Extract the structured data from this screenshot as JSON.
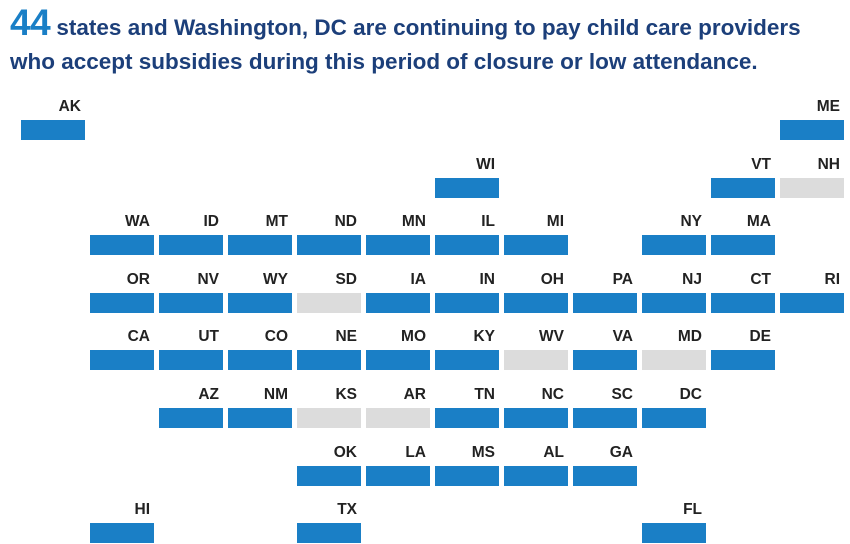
{
  "headline": {
    "count": "44",
    "text_line1": " states and Washington, DC are continuing to pay child care providers",
    "text_line2": "who accept subsidies during this period of closure or low attendance."
  },
  "colors": {
    "paying": "#1a7fc6",
    "not_paying": "#dcdcdc",
    "headline_text": "#1c3f7a",
    "headline_number": "#1a7fc6"
  },
  "states": [
    {
      "abbr": "AK",
      "row": 0,
      "col": 0,
      "paying": true
    },
    {
      "abbr": "ME",
      "row": 0,
      "col": 11,
      "paying": true
    },
    {
      "abbr": "WI",
      "row": 1,
      "col": 6,
      "paying": true
    },
    {
      "abbr": "VT",
      "row": 1,
      "col": 10,
      "paying": true
    },
    {
      "abbr": "NH",
      "row": 1,
      "col": 11,
      "paying": false
    },
    {
      "abbr": "WA",
      "row": 2,
      "col": 1,
      "paying": true
    },
    {
      "abbr": "ID",
      "row": 2,
      "col": 2,
      "paying": true
    },
    {
      "abbr": "MT",
      "row": 2,
      "col": 3,
      "paying": true
    },
    {
      "abbr": "ND",
      "row": 2,
      "col": 4,
      "paying": true
    },
    {
      "abbr": "MN",
      "row": 2,
      "col": 5,
      "paying": true
    },
    {
      "abbr": "IL",
      "row": 2,
      "col": 6,
      "paying": true
    },
    {
      "abbr": "MI",
      "row": 2,
      "col": 7,
      "paying": true
    },
    {
      "abbr": "NY",
      "row": 2,
      "col": 9,
      "paying": true
    },
    {
      "abbr": "MA",
      "row": 2,
      "col": 10,
      "paying": true
    },
    {
      "abbr": "OR",
      "row": 3,
      "col": 1,
      "paying": true
    },
    {
      "abbr": "NV",
      "row": 3,
      "col": 2,
      "paying": true
    },
    {
      "abbr": "WY",
      "row": 3,
      "col": 3,
      "paying": true
    },
    {
      "abbr": "SD",
      "row": 3,
      "col": 4,
      "paying": false
    },
    {
      "abbr": "IA",
      "row": 3,
      "col": 5,
      "paying": true
    },
    {
      "abbr": "IN",
      "row": 3,
      "col": 6,
      "paying": true
    },
    {
      "abbr": "OH",
      "row": 3,
      "col": 7,
      "paying": true
    },
    {
      "abbr": "PA",
      "row": 3,
      "col": 8,
      "paying": true
    },
    {
      "abbr": "NJ",
      "row": 3,
      "col": 9,
      "paying": true
    },
    {
      "abbr": "CT",
      "row": 3,
      "col": 10,
      "paying": true
    },
    {
      "abbr": "RI",
      "row": 3,
      "col": 11,
      "paying": true
    },
    {
      "abbr": "CA",
      "row": 4,
      "col": 1,
      "paying": true
    },
    {
      "abbr": "UT",
      "row": 4,
      "col": 2,
      "paying": true
    },
    {
      "abbr": "CO",
      "row": 4,
      "col": 3,
      "paying": true
    },
    {
      "abbr": "NE",
      "row": 4,
      "col": 4,
      "paying": true
    },
    {
      "abbr": "MO",
      "row": 4,
      "col": 5,
      "paying": true
    },
    {
      "abbr": "KY",
      "row": 4,
      "col": 6,
      "paying": true
    },
    {
      "abbr": "WV",
      "row": 4,
      "col": 7,
      "paying": false
    },
    {
      "abbr": "VA",
      "row": 4,
      "col": 8,
      "paying": true
    },
    {
      "abbr": "MD",
      "row": 4,
      "col": 9,
      "paying": false
    },
    {
      "abbr": "DE",
      "row": 4,
      "col": 10,
      "paying": true
    },
    {
      "abbr": "AZ",
      "row": 5,
      "col": 2,
      "paying": true
    },
    {
      "abbr": "NM",
      "row": 5,
      "col": 3,
      "paying": true
    },
    {
      "abbr": "KS",
      "row": 5,
      "col": 4,
      "paying": false
    },
    {
      "abbr": "AR",
      "row": 5,
      "col": 5,
      "paying": false
    },
    {
      "abbr": "TN",
      "row": 5,
      "col": 6,
      "paying": true
    },
    {
      "abbr": "NC",
      "row": 5,
      "col": 7,
      "paying": true
    },
    {
      "abbr": "SC",
      "row": 5,
      "col": 8,
      "paying": true
    },
    {
      "abbr": "DC",
      "row": 5,
      "col": 9,
      "paying": true
    },
    {
      "abbr": "OK",
      "row": 6,
      "col": 4,
      "paying": true
    },
    {
      "abbr": "LA",
      "row": 6,
      "col": 5,
      "paying": true
    },
    {
      "abbr": "MS",
      "row": 6,
      "col": 6,
      "paying": true
    },
    {
      "abbr": "AL",
      "row": 6,
      "col": 7,
      "paying": true
    },
    {
      "abbr": "GA",
      "row": 6,
      "col": 8,
      "paying": true
    },
    {
      "abbr": "HI",
      "row": 7,
      "col": 1,
      "paying": true
    },
    {
      "abbr": "TX",
      "row": 7,
      "col": 4,
      "paying": true
    },
    {
      "abbr": "FL",
      "row": 7,
      "col": 9,
      "paying": true
    }
  ]
}
